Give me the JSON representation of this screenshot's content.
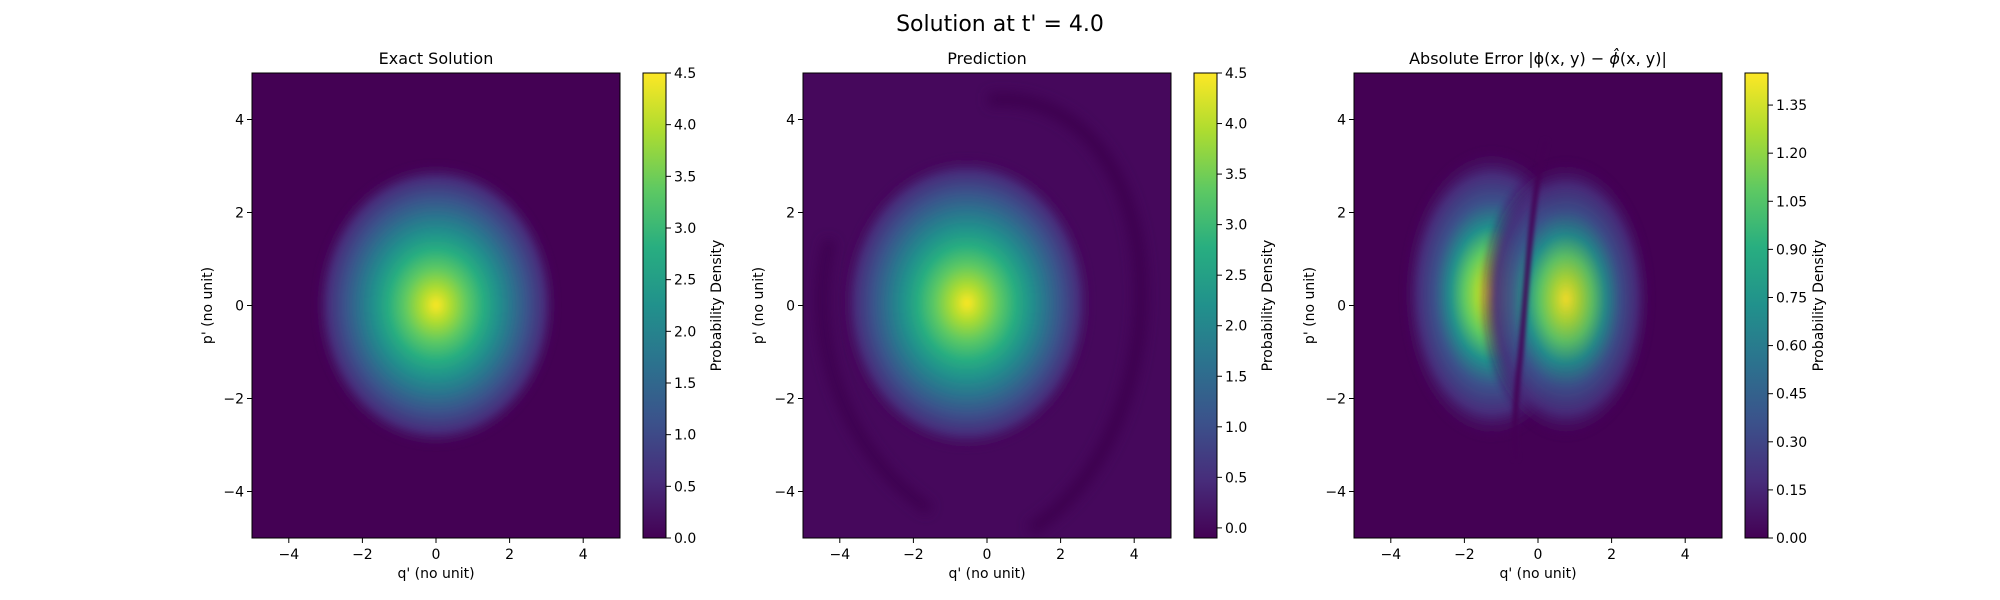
{
  "suptitle": "Solution at t' = 4.0",
  "chart_data": [
    {
      "type": "heatmap",
      "title": "Exact Solution",
      "xlabel": "q' (no unit)",
      "ylabel": "p' (no unit)",
      "xlim": [
        -5,
        5
      ],
      "ylim": [
        -5,
        5
      ],
      "xticks": [
        "−4",
        "−2",
        "0",
        "2",
        "4"
      ],
      "yticks": [
        "−4",
        "−2",
        "0",
        "2",
        "4"
      ],
      "colormap": "viridis",
      "colorbar_label": "Probability Density",
      "colorbar_range": [
        0,
        4.5
      ],
      "colorbar_ticks": [
        "0.0",
        "0.5",
        "1.0",
        "1.5",
        "2.0",
        "2.5",
        "3.0",
        "3.5",
        "4.0",
        "4.5"
      ],
      "peak": {
        "q": 0.0,
        "p": 0.0,
        "value": 4.5
      }
    },
    {
      "type": "heatmap",
      "title": "Prediction",
      "xlabel": "q' (no unit)",
      "ylabel": "p' (no unit)",
      "xlim": [
        -5,
        5
      ],
      "ylim": [
        -5,
        5
      ],
      "xticks": [
        "−4",
        "−2",
        "0",
        "2",
        "4"
      ],
      "yticks": [
        "−4",
        "−2",
        "0",
        "2",
        "4"
      ],
      "colormap": "viridis",
      "colorbar_label": "Probability Density",
      "colorbar_range": [
        -0.1,
        4.5
      ],
      "colorbar_ticks": [
        "0.0",
        "0.5",
        "1.0",
        "1.5",
        "2.0",
        "2.5",
        "3.0",
        "3.5",
        "4.0",
        "4.5"
      ],
      "peak": {
        "q": -0.6,
        "p": 0.1,
        "value": 4.5
      }
    },
    {
      "type": "heatmap",
      "title": "Absolute Error |ϕ(x, y) − ϕ̂(x, y)|",
      "xlabel": "q' (no unit)",
      "ylabel": "p' (no unit)",
      "xlim": [
        -5,
        5
      ],
      "ylim": [
        -5,
        5
      ],
      "xticks": [
        "−4",
        "−2",
        "0",
        "2",
        "4"
      ],
      "yticks": [
        "−4",
        "−2",
        "0",
        "2",
        "4"
      ],
      "colormap": "viridis",
      "colorbar_label": "Probability Density",
      "colorbar_range": [
        0,
        1.45
      ],
      "colorbar_ticks": [
        "0.00",
        "0.15",
        "0.30",
        "0.45",
        "0.60",
        "0.75",
        "0.90",
        "1.05",
        "1.20",
        "1.35"
      ],
      "peaks": [
        {
          "q": -1.3,
          "p": 0.4,
          "value": 1.45
        },
        {
          "q": 0.8,
          "p": 0.2,
          "value": 1.3
        }
      ]
    }
  ]
}
